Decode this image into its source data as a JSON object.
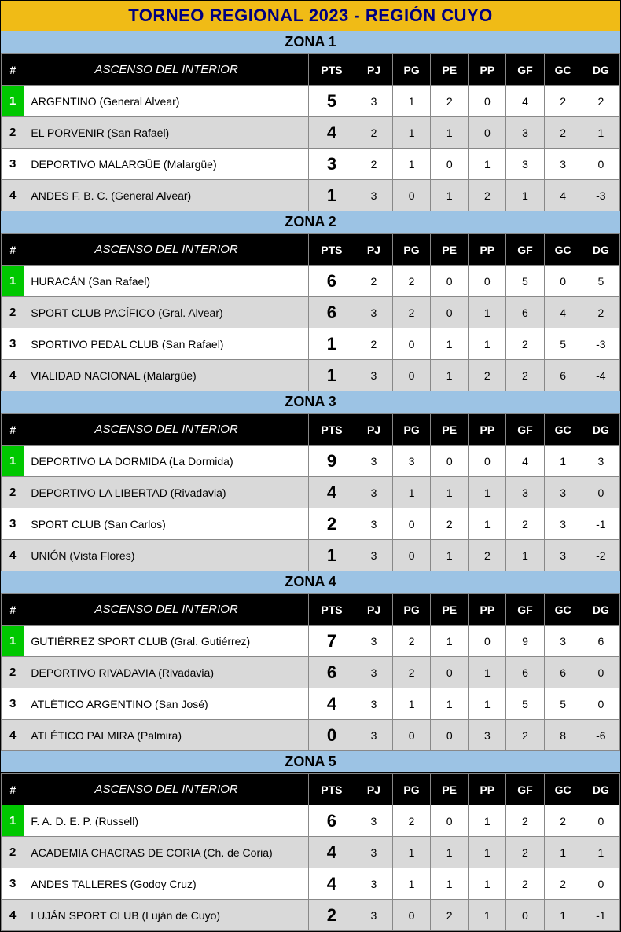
{
  "title": "TORNEO REGIONAL 2023 - REGIÓN CUYO",
  "columns": {
    "pos": "#",
    "team": "ASCENSO DEL INTERIOR",
    "pts": "PTS",
    "pj": "PJ",
    "pg": "PG",
    "pe": "PE",
    "pp": "PP",
    "gf": "GF",
    "gc": "GC",
    "dg": "DG"
  },
  "colors": {
    "title_bg": "#f0bb16",
    "title_fg": "#000080",
    "zone_bg": "#9cc3e4",
    "header_bg": "#000000",
    "header_fg": "#ffffff",
    "leader_bg": "#00c800",
    "row_odd": "#ffffff",
    "row_even": "#d9d9d9"
  },
  "zones": [
    {
      "name": "ZONA 1",
      "rows": [
        {
          "pos": "1",
          "team": "ARGENTINO (General Alvear)",
          "pts": "5",
          "pj": "3",
          "pg": "1",
          "pe": "2",
          "pp": "0",
          "gf": "4",
          "gc": "2",
          "dg": "2",
          "leader": true
        },
        {
          "pos": "2",
          "team": "EL PORVENIR (San Rafael)",
          "pts": "4",
          "pj": "2",
          "pg": "1",
          "pe": "1",
          "pp": "0",
          "gf": "3",
          "gc": "2",
          "dg": "1"
        },
        {
          "pos": "3",
          "team": "DEPORTIVO MALARGÜE (Malargüe)",
          "pts": "3",
          "pj": "2",
          "pg": "1",
          "pe": "0",
          "pp": "1",
          "gf": "3",
          "gc": "3",
          "dg": "0"
        },
        {
          "pos": "4",
          "team": "ANDES F. B. C. (General Alvear)",
          "pts": "1",
          "pj": "3",
          "pg": "0",
          "pe": "1",
          "pp": "2",
          "gf": "1",
          "gc": "4",
          "dg": "-3"
        }
      ]
    },
    {
      "name": "ZONA 2",
      "rows": [
        {
          "pos": "1",
          "team": "HURACÁN (San Rafael)",
          "pts": "6",
          "pj": "2",
          "pg": "2",
          "pe": "0",
          "pp": "0",
          "gf": "5",
          "gc": "0",
          "dg": "5",
          "leader": true
        },
        {
          "pos": "2",
          "team": "SPORT CLUB PACÍFICO (Gral. Alvear)",
          "pts": "6",
          "pj": "3",
          "pg": "2",
          "pe": "0",
          "pp": "1",
          "gf": "6",
          "gc": "4",
          "dg": "2"
        },
        {
          "pos": "3",
          "team": "SPORTIVO PEDAL CLUB (San Rafael)",
          "pts": "1",
          "pj": "2",
          "pg": "0",
          "pe": "1",
          "pp": "1",
          "gf": "2",
          "gc": "5",
          "dg": "-3"
        },
        {
          "pos": "4",
          "team": "VIALIDAD NACIONAL (Malargüe)",
          "pts": "1",
          "pj": "3",
          "pg": "0",
          "pe": "1",
          "pp": "2",
          "gf": "2",
          "gc": "6",
          "dg": "-4"
        }
      ]
    },
    {
      "name": "ZONA 3",
      "rows": [
        {
          "pos": "1",
          "team": "DEPORTIVO LA DORMIDA (La Dormida)",
          "pts": "9",
          "pj": "3",
          "pg": "3",
          "pe": "0",
          "pp": "0",
          "gf": "4",
          "gc": "1",
          "dg": "3",
          "leader": true
        },
        {
          "pos": "2",
          "team": "DEPORTIVO LA LIBERTAD (Rivadavia)",
          "pts": "4",
          "pj": "3",
          "pg": "1",
          "pe": "1",
          "pp": "1",
          "gf": "3",
          "gc": "3",
          "dg": "0"
        },
        {
          "pos": "3",
          "team": "SPORT CLUB (San Carlos)",
          "pts": "2",
          "pj": "3",
          "pg": "0",
          "pe": "2",
          "pp": "1",
          "gf": "2",
          "gc": "3",
          "dg": "-1"
        },
        {
          "pos": "4",
          "team": "UNIÓN (Vista Flores)",
          "pts": "1",
          "pj": "3",
          "pg": "0",
          "pe": "1",
          "pp": "2",
          "gf": "1",
          "gc": "3",
          "dg": "-2"
        }
      ]
    },
    {
      "name": "ZONA 4",
      "rows": [
        {
          "pos": "1",
          "team": "GUTIÉRREZ SPORT CLUB (Gral. Gutiérrez)",
          "pts": "7",
          "pj": "3",
          "pg": "2",
          "pe": "1",
          "pp": "0",
          "gf": "9",
          "gc": "3",
          "dg": "6",
          "leader": true
        },
        {
          "pos": "2",
          "team": "DEPORTIVO RIVADAVIA (Rivadavia)",
          "pts": "6",
          "pj": "3",
          "pg": "2",
          "pe": "0",
          "pp": "1",
          "gf": "6",
          "gc": "6",
          "dg": "0"
        },
        {
          "pos": "3",
          "team": "ATLÉTICO ARGENTINO (San José)",
          "pts": "4",
          "pj": "3",
          "pg": "1",
          "pe": "1",
          "pp": "1",
          "gf": "5",
          "gc": "5",
          "dg": "0"
        },
        {
          "pos": "4",
          "team": "ATLÉTICO PALMIRA (Palmira)",
          "pts": "0",
          "pj": "3",
          "pg": "0",
          "pe": "0",
          "pp": "3",
          "gf": "2",
          "gc": "8",
          "dg": "-6"
        }
      ]
    },
    {
      "name": "ZONA 5",
      "rows": [
        {
          "pos": "1",
          "team": "F. A. D. E. P. (Russell)",
          "pts": "6",
          "pj": "3",
          "pg": "2",
          "pe": "0",
          "pp": "1",
          "gf": "2",
          "gc": "2",
          "dg": "0",
          "leader": true
        },
        {
          "pos": "2",
          "team": "ACADEMIA CHACRAS DE CORIA (Ch. de Coria)",
          "pts": "4",
          "pj": "3",
          "pg": "1",
          "pe": "1",
          "pp": "1",
          "gf": "2",
          "gc": "1",
          "dg": "1"
        },
        {
          "pos": "3",
          "team": "ANDES TALLERES (Godoy Cruz)",
          "pts": "4",
          "pj": "3",
          "pg": "1",
          "pe": "1",
          "pp": "1",
          "gf": "2",
          "gc": "2",
          "dg": "0"
        },
        {
          "pos": "4",
          "team": "LUJÁN SPORT CLUB (Luján de Cuyo)",
          "pts": "2",
          "pj": "3",
          "pg": "0",
          "pe": "2",
          "pp": "1",
          "gf": "0",
          "gc": "1",
          "dg": "-1"
        }
      ]
    }
  ]
}
